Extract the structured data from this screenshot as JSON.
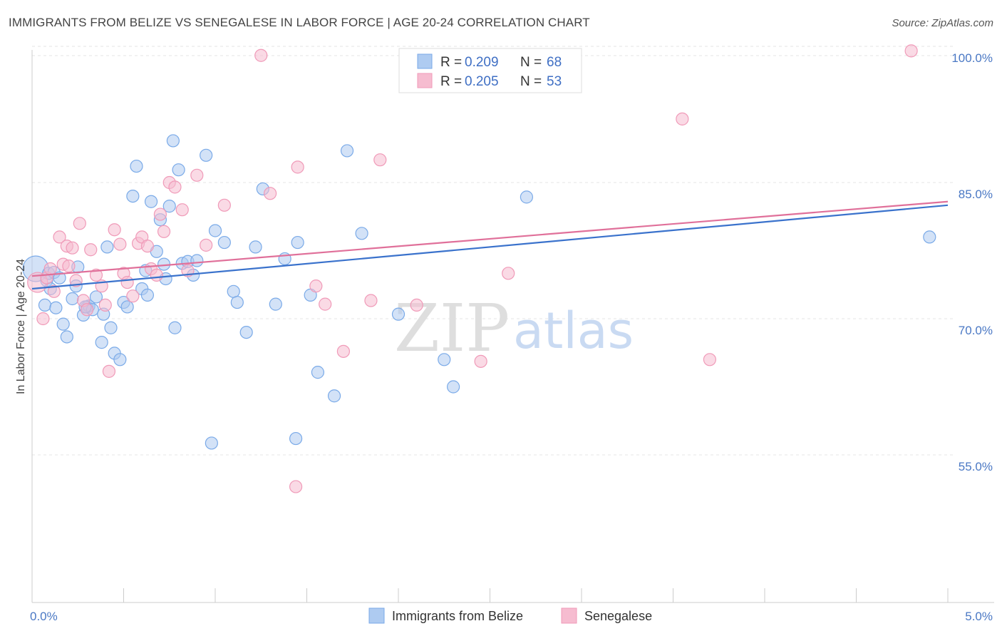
{
  "title": "IMMIGRANTS FROM BELIZE VS SENEGALESE IN LABOR FORCE | AGE 20-24 CORRELATION CHART",
  "source": "Source: ZipAtlas.com",
  "watermark": {
    "zip": "ZIP",
    "atlas": "atlas"
  },
  "chart_data": {
    "type": "scatter",
    "ylabel": "In Labor Force | Age 20-24",
    "xlim": [
      0,
      5
    ],
    "ylim": [
      40,
      102
    ],
    "y_ticks": [
      {
        "value": 55,
        "label": "55.0%"
      },
      {
        "value": 70,
        "label": "70.0%"
      },
      {
        "value": 85,
        "label": "85.0%"
      },
      {
        "value": 100,
        "label": "100.0%"
      }
    ],
    "x_ticks": [
      {
        "value": 0,
        "label": "0.0%"
      },
      {
        "value": 5,
        "label": "5.0%"
      }
    ],
    "legend": [
      {
        "r_label": "R = ",
        "r_value": "0.209",
        "n_label": "N = ",
        "n_value": "68"
      },
      {
        "r_label": "R = ",
        "r_value": "0.205",
        "n_label": "N = ",
        "n_value": "53"
      }
    ],
    "series": [
      {
        "name": "Immigrants from Belize",
        "color": "#7aaae8",
        "fill": "#aecbf1",
        "line_color": "#3a72cc",
        "trend": [
          [
            0,
            73.3
          ],
          [
            5,
            82.5
          ]
        ],
        "points": [
          [
            0.02,
            75.5
          ],
          [
            0.07,
            71.5
          ],
          [
            0.08,
            74.2
          ],
          [
            0.09,
            75.0
          ],
          [
            0.1,
            73.3
          ],
          [
            0.12,
            75.1
          ],
          [
            0.13,
            71.2
          ],
          [
            0.15,
            74.5
          ],
          [
            0.17,
            69.4
          ],
          [
            0.19,
            68.0
          ],
          [
            0.22,
            72.2
          ],
          [
            0.24,
            73.6
          ],
          [
            0.25,
            75.7
          ],
          [
            0.28,
            70.4
          ],
          [
            0.3,
            71.3
          ],
          [
            0.31,
            71.4
          ],
          [
            0.33,
            71.0
          ],
          [
            0.35,
            72.4
          ],
          [
            0.38,
            67.4
          ],
          [
            0.39,
            70.5
          ],
          [
            0.41,
            77.9
          ],
          [
            0.43,
            69.0
          ],
          [
            0.45,
            66.2
          ],
          [
            0.48,
            65.5
          ],
          [
            0.5,
            71.8
          ],
          [
            0.52,
            71.3
          ],
          [
            0.55,
            83.5
          ],
          [
            0.57,
            86.8
          ],
          [
            0.6,
            73.3
          ],
          [
            0.62,
            75.3
          ],
          [
            0.63,
            72.6
          ],
          [
            0.65,
            82.9
          ],
          [
            0.68,
            77.4
          ],
          [
            0.7,
            80.9
          ],
          [
            0.72,
            76.0
          ],
          [
            0.73,
            74.4
          ],
          [
            0.75,
            82.4
          ],
          [
            0.77,
            89.6
          ],
          [
            0.78,
            69.0
          ],
          [
            0.8,
            86.4
          ],
          [
            0.82,
            76.1
          ],
          [
            0.85,
            76.3
          ],
          [
            0.88,
            74.8
          ],
          [
            0.9,
            76.4
          ],
          [
            0.95,
            88.0
          ],
          [
            1.0,
            79.7
          ],
          [
            1.05,
            78.4
          ],
          [
            1.1,
            73.0
          ],
          [
            1.12,
            71.8
          ],
          [
            1.17,
            68.5
          ],
          [
            1.22,
            77.9
          ],
          [
            1.26,
            84.3
          ],
          [
            1.33,
            71.6
          ],
          [
            1.38,
            76.6
          ],
          [
            1.45,
            78.4
          ],
          [
            1.52,
            72.6
          ],
          [
            1.56,
            64.1
          ],
          [
            1.65,
            61.5
          ],
          [
            1.72,
            88.5
          ],
          [
            1.8,
            79.4
          ],
          [
            2.0,
            70.5
          ],
          [
            2.25,
            65.5
          ],
          [
            2.3,
            62.5
          ],
          [
            2.7,
            83.4
          ],
          [
            0.29,
            71.3
          ],
          [
            1.44,
            56.8
          ],
          [
            0.98,
            56.3
          ],
          [
            4.9,
            79.0
          ]
        ]
      },
      {
        "name": "Senegalese",
        "color": "#f09ab8",
        "fill": "#f6bcd0",
        "line_color": "#e0709a",
        "trend": [
          [
            0,
            74.7
          ],
          [
            5,
            82.9
          ]
        ],
        "points": [
          [
            0.03,
            74.0
          ],
          [
            0.06,
            70.0
          ],
          [
            0.08,
            74.5
          ],
          [
            0.1,
            75.5
          ],
          [
            0.12,
            73.0
          ],
          [
            0.15,
            79.0
          ],
          [
            0.17,
            76.0
          ],
          [
            0.19,
            78.0
          ],
          [
            0.2,
            75.8
          ],
          [
            0.22,
            77.8
          ],
          [
            0.24,
            74.2
          ],
          [
            0.26,
            80.5
          ],
          [
            0.28,
            72.0
          ],
          [
            0.3,
            71.0
          ],
          [
            0.32,
            77.6
          ],
          [
            0.35,
            74.8
          ],
          [
            0.38,
            73.6
          ],
          [
            0.4,
            71.5
          ],
          [
            0.42,
            64.2
          ],
          [
            0.45,
            79.8
          ],
          [
            0.48,
            78.2
          ],
          [
            0.5,
            75.0
          ],
          [
            0.52,
            74.0
          ],
          [
            0.55,
            72.5
          ],
          [
            0.58,
            78.3
          ],
          [
            0.6,
            79.0
          ],
          [
            0.63,
            78.0
          ],
          [
            0.65,
            75.5
          ],
          [
            0.68,
            74.8
          ],
          [
            0.7,
            81.5
          ],
          [
            0.72,
            79.6
          ],
          [
            0.75,
            85.0
          ],
          [
            0.78,
            84.5
          ],
          [
            0.82,
            82.0
          ],
          [
            0.85,
            75.3
          ],
          [
            0.9,
            85.8
          ],
          [
            0.95,
            78.1
          ],
          [
            1.05,
            82.5
          ],
          [
            1.25,
            99.0
          ],
          [
            1.3,
            83.8
          ],
          [
            1.45,
            86.7
          ],
          [
            1.55,
            73.6
          ],
          [
            1.6,
            71.6
          ],
          [
            1.7,
            66.4
          ],
          [
            1.85,
            72.0
          ],
          [
            1.9,
            87.5
          ],
          [
            2.1,
            71.5
          ],
          [
            2.45,
            65.3
          ],
          [
            2.6,
            75.0
          ],
          [
            3.55,
            92.0
          ],
          [
            3.7,
            65.5
          ],
          [
            4.8,
            99.5
          ],
          [
            1.44,
            51.5
          ]
        ]
      }
    ]
  }
}
